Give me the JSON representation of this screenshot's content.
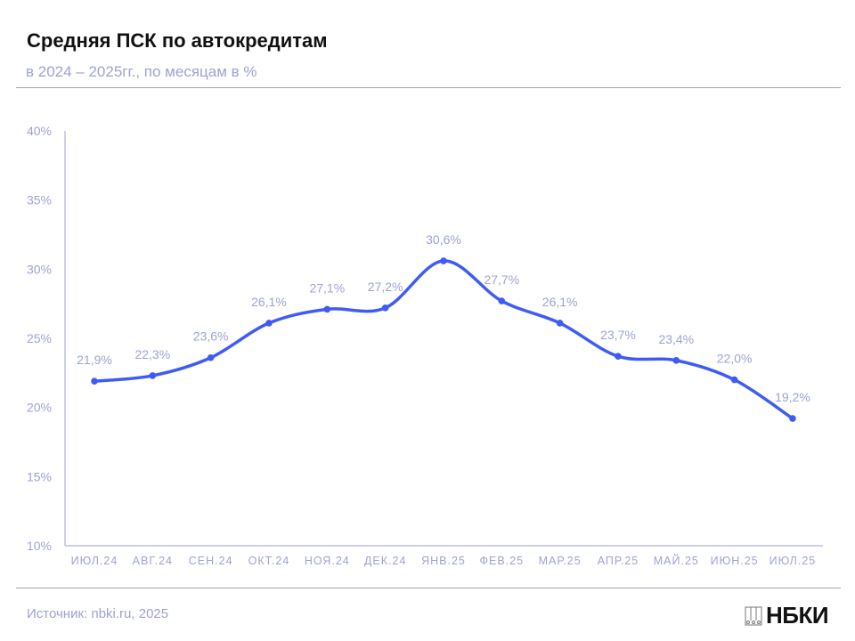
{
  "header": {
    "title": "Средняя ПСК по автокредитам",
    "subtitle": "в 2024 – 2025гг., по месяцам в %"
  },
  "footer": {
    "source": "Источник: nbki.ru, 2025",
    "logo_text": "НБКИ"
  },
  "colors": {
    "line": "#3f5bf6",
    "text": "#9ea2d4",
    "axis": "#9ea2d4"
  },
  "chart_data": {
    "type": "line",
    "categories": [
      "ИЮЛ.24",
      "АВГ.24",
      "СЕН.24",
      "ОКТ.24",
      "НОЯ.24",
      "ДЕК.24",
      "ЯНВ.25",
      "ФЕВ.25",
      "МАР.25",
      "АПР.25",
      "МАЙ.25",
      "ИЮН.25",
      "ИЮЛ.25"
    ],
    "values": [
      21.9,
      22.3,
      23.6,
      26.1,
      27.1,
      27.2,
      30.6,
      27.7,
      26.1,
      23.7,
      23.4,
      22.0,
      19.2
    ],
    "data_labels": [
      "21,9%",
      "22,3%",
      "23,6%",
      "26,1%",
      "27,1%",
      "27,2%",
      "30,6%",
      "27,7%",
      "26,1%",
      "23,7%",
      "23,4%",
      "22,0%",
      "19,2%"
    ],
    "ylim": [
      10,
      40
    ],
    "yticks": [
      10,
      15,
      20,
      25,
      30,
      35,
      40
    ],
    "ytick_labels": [
      "10%",
      "15%",
      "20%",
      "25%",
      "30%",
      "35%",
      "40%"
    ],
    "grid": false,
    "smooth": true
  }
}
